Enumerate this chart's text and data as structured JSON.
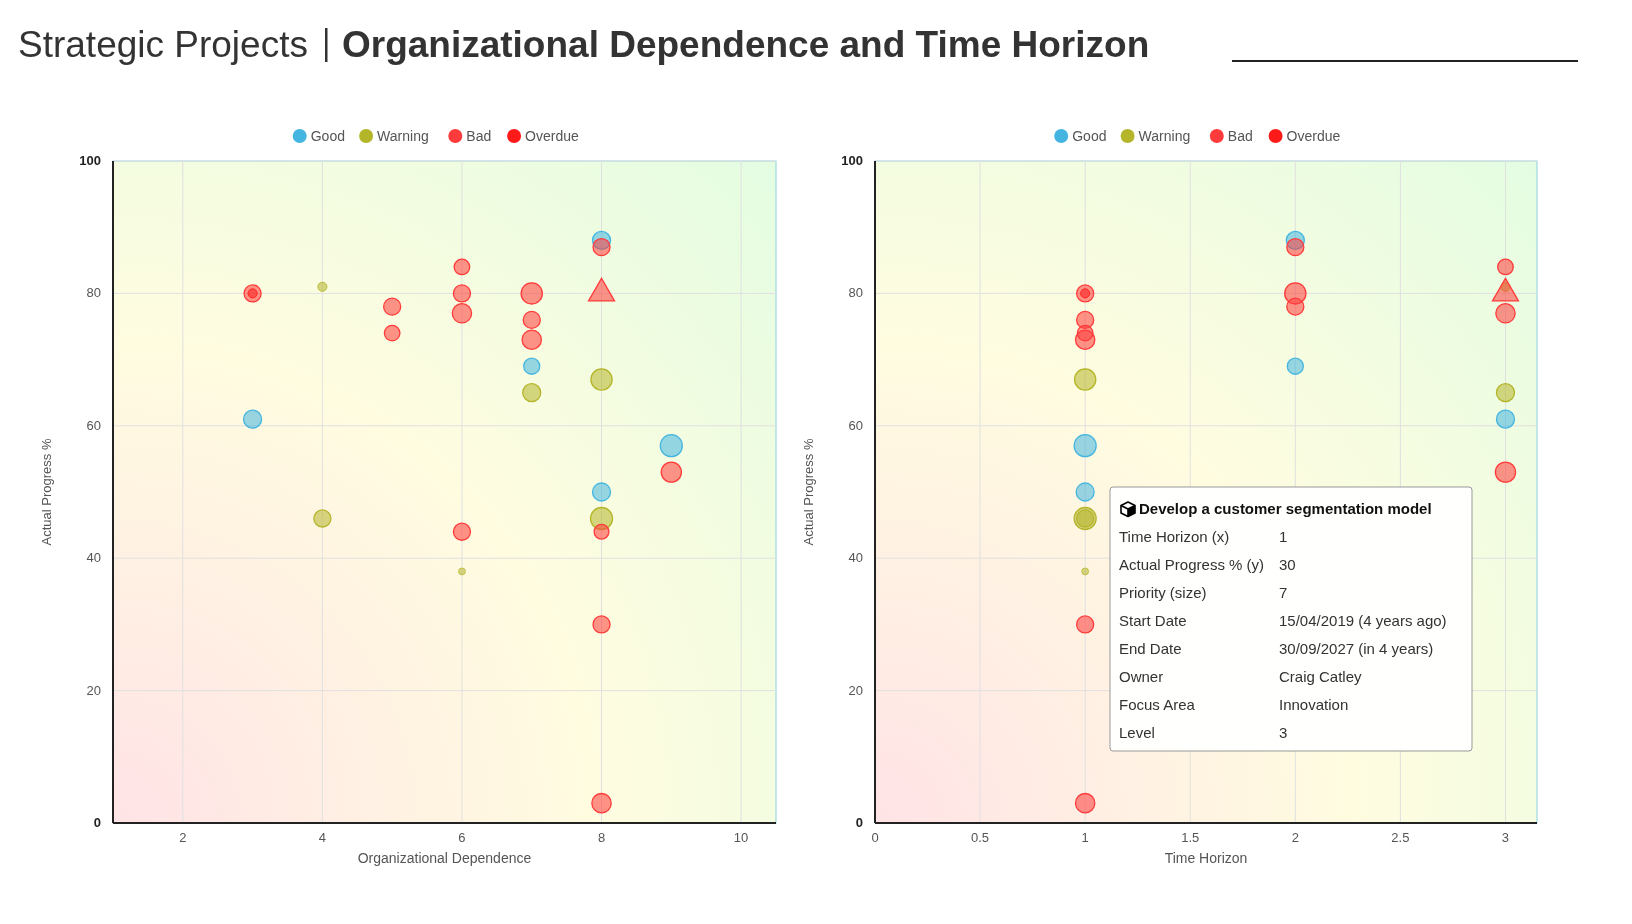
{
  "chart_data": [
    {
      "type": "bubble",
      "title": "Strategic Projects",
      "subtitle": "Organizational Dependence and Time Horizon",
      "xlabel": "Organizational Dependence",
      "ylabel": "Actual Progress %",
      "xlim": [
        1,
        10.5
      ],
      "xticks": [
        2,
        4,
        6,
        8,
        10
      ],
      "ylim": [
        0,
        100
      ],
      "yticks": [
        0,
        20,
        40,
        60,
        80,
        100
      ],
      "grid": true,
      "legend": "top",
      "marker": "circle",
      "series": [
        {
          "name": "Good",
          "color": "#44b5e0",
          "x": [
            3,
            7,
            8,
            9,
            8
          ],
          "values": [
            61,
            69,
            88,
            57,
            50
          ],
          "sizes": [
            0.67,
            0.53,
            0.67,
            1,
            0.67
          ]
        },
        {
          "name": "Warning",
          "color": "#b5b52a",
          "x": [
            4,
            7,
            8,
            4,
            8,
            6
          ],
          "values": [
            81,
            65,
            67,
            46,
            46,
            38
          ],
          "sizes": [
            0.17,
            0.67,
            0.93,
            0.6,
            1,
            0.1
          ]
        },
        {
          "name": "Bad",
          "color": "#ff3b3b",
          "x": [
            3,
            5,
            5,
            6,
            6,
            6,
            7,
            7,
            7,
            8,
            9,
            6,
            8,
            8,
            8
          ],
          "values": [
            80,
            78,
            74,
            84,
            80,
            77,
            80,
            76,
            73,
            87,
            53,
            44,
            44,
            30,
            3
          ],
          "sizes": [
            0.6,
            0.6,
            0.5,
            0.5,
            0.6,
            0.77,
            0.93,
            0.6,
            0.77,
            0.6,
            0.84,
            0.6,
            0.45,
            0.6,
            0.77
          ]
        },
        {
          "name": "Overdue",
          "color": "#ff1a1a",
          "x": [
            3
          ],
          "values": [
            80
          ],
          "sizes": [
            0.17
          ]
        },
        {
          "color": "#ff3b3b",
          "marker": "triangle",
          "x": [
            8
          ],
          "values": [
            80
          ],
          "sizes": [
            0.93
          ]
        }
      ]
    },
    {
      "type": "bubble",
      "xlabel": "Time Horizon",
      "ylabel": "Actual Progress %",
      "xlim": [
        0,
        3.15
      ],
      "xticks": [
        0,
        0.5,
        1,
        1.5,
        2,
        2.5,
        3
      ],
      "ylim": [
        0,
        100
      ],
      "yticks": [
        0,
        20,
        40,
        60,
        80,
        100
      ],
      "grid": true,
      "legend": "top",
      "marker": "circle",
      "annotations": [
        "Develop a customer segmentation model",
        "Time Horizon (x)",
        "1",
        "Actual Progress % (y)",
        "30",
        "Priority (size)",
        "7",
        "Start Date",
        "15/04/2019 (4 years ago)",
        "End Date",
        "30/09/2027 (in 4 years)",
        "Owner",
        "Craig Catley",
        "Focus Area",
        "Innovation",
        "Level",
        "3"
      ],
      "series": [
        {
          "name": "Good",
          "color": "#44b5e0",
          "x": [
            1,
            1,
            2,
            2,
            3
          ],
          "values": [
            57,
            50,
            88,
            69,
            61
          ],
          "sizes": [
            1,
            0.67,
            0.67,
            0.53,
            0.67
          ]
        },
        {
          "name": "Warning",
          "color": "#b5b52a",
          "x": [
            1,
            1,
            1,
            1,
            3,
            3
          ],
          "values": [
            67,
            46,
            46,
            38,
            81,
            65
          ],
          "sizes": [
            0.93,
            0.6,
            1,
            0.1,
            0.17,
            0.67
          ]
        },
        {
          "name": "Bad",
          "color": "#ff3b3b",
          "x": [
            1,
            1,
            1,
            1,
            1,
            1,
            2,
            2,
            2,
            3,
            3,
            3
          ],
          "values": [
            80,
            76,
            74,
            73,
            30,
            3,
            87,
            80,
            78,
            84,
            77,
            53
          ],
          "sizes": [
            0.6,
            0.6,
            0.5,
            0.77,
            0.6,
            0.77,
            0.6,
            0.93,
            0.6,
            0.5,
            0.77,
            0.84
          ]
        },
        {
          "name": "Overdue",
          "color": "#ff1a1a",
          "x": [
            1
          ],
          "values": [
            80
          ],
          "sizes": [
            0.17
          ]
        },
        {
          "color": "#ff3b3b",
          "marker": "triangle",
          "x": [
            3
          ],
          "values": [
            80
          ],
          "sizes": [
            0.93
          ]
        }
      ]
    }
  ]
}
